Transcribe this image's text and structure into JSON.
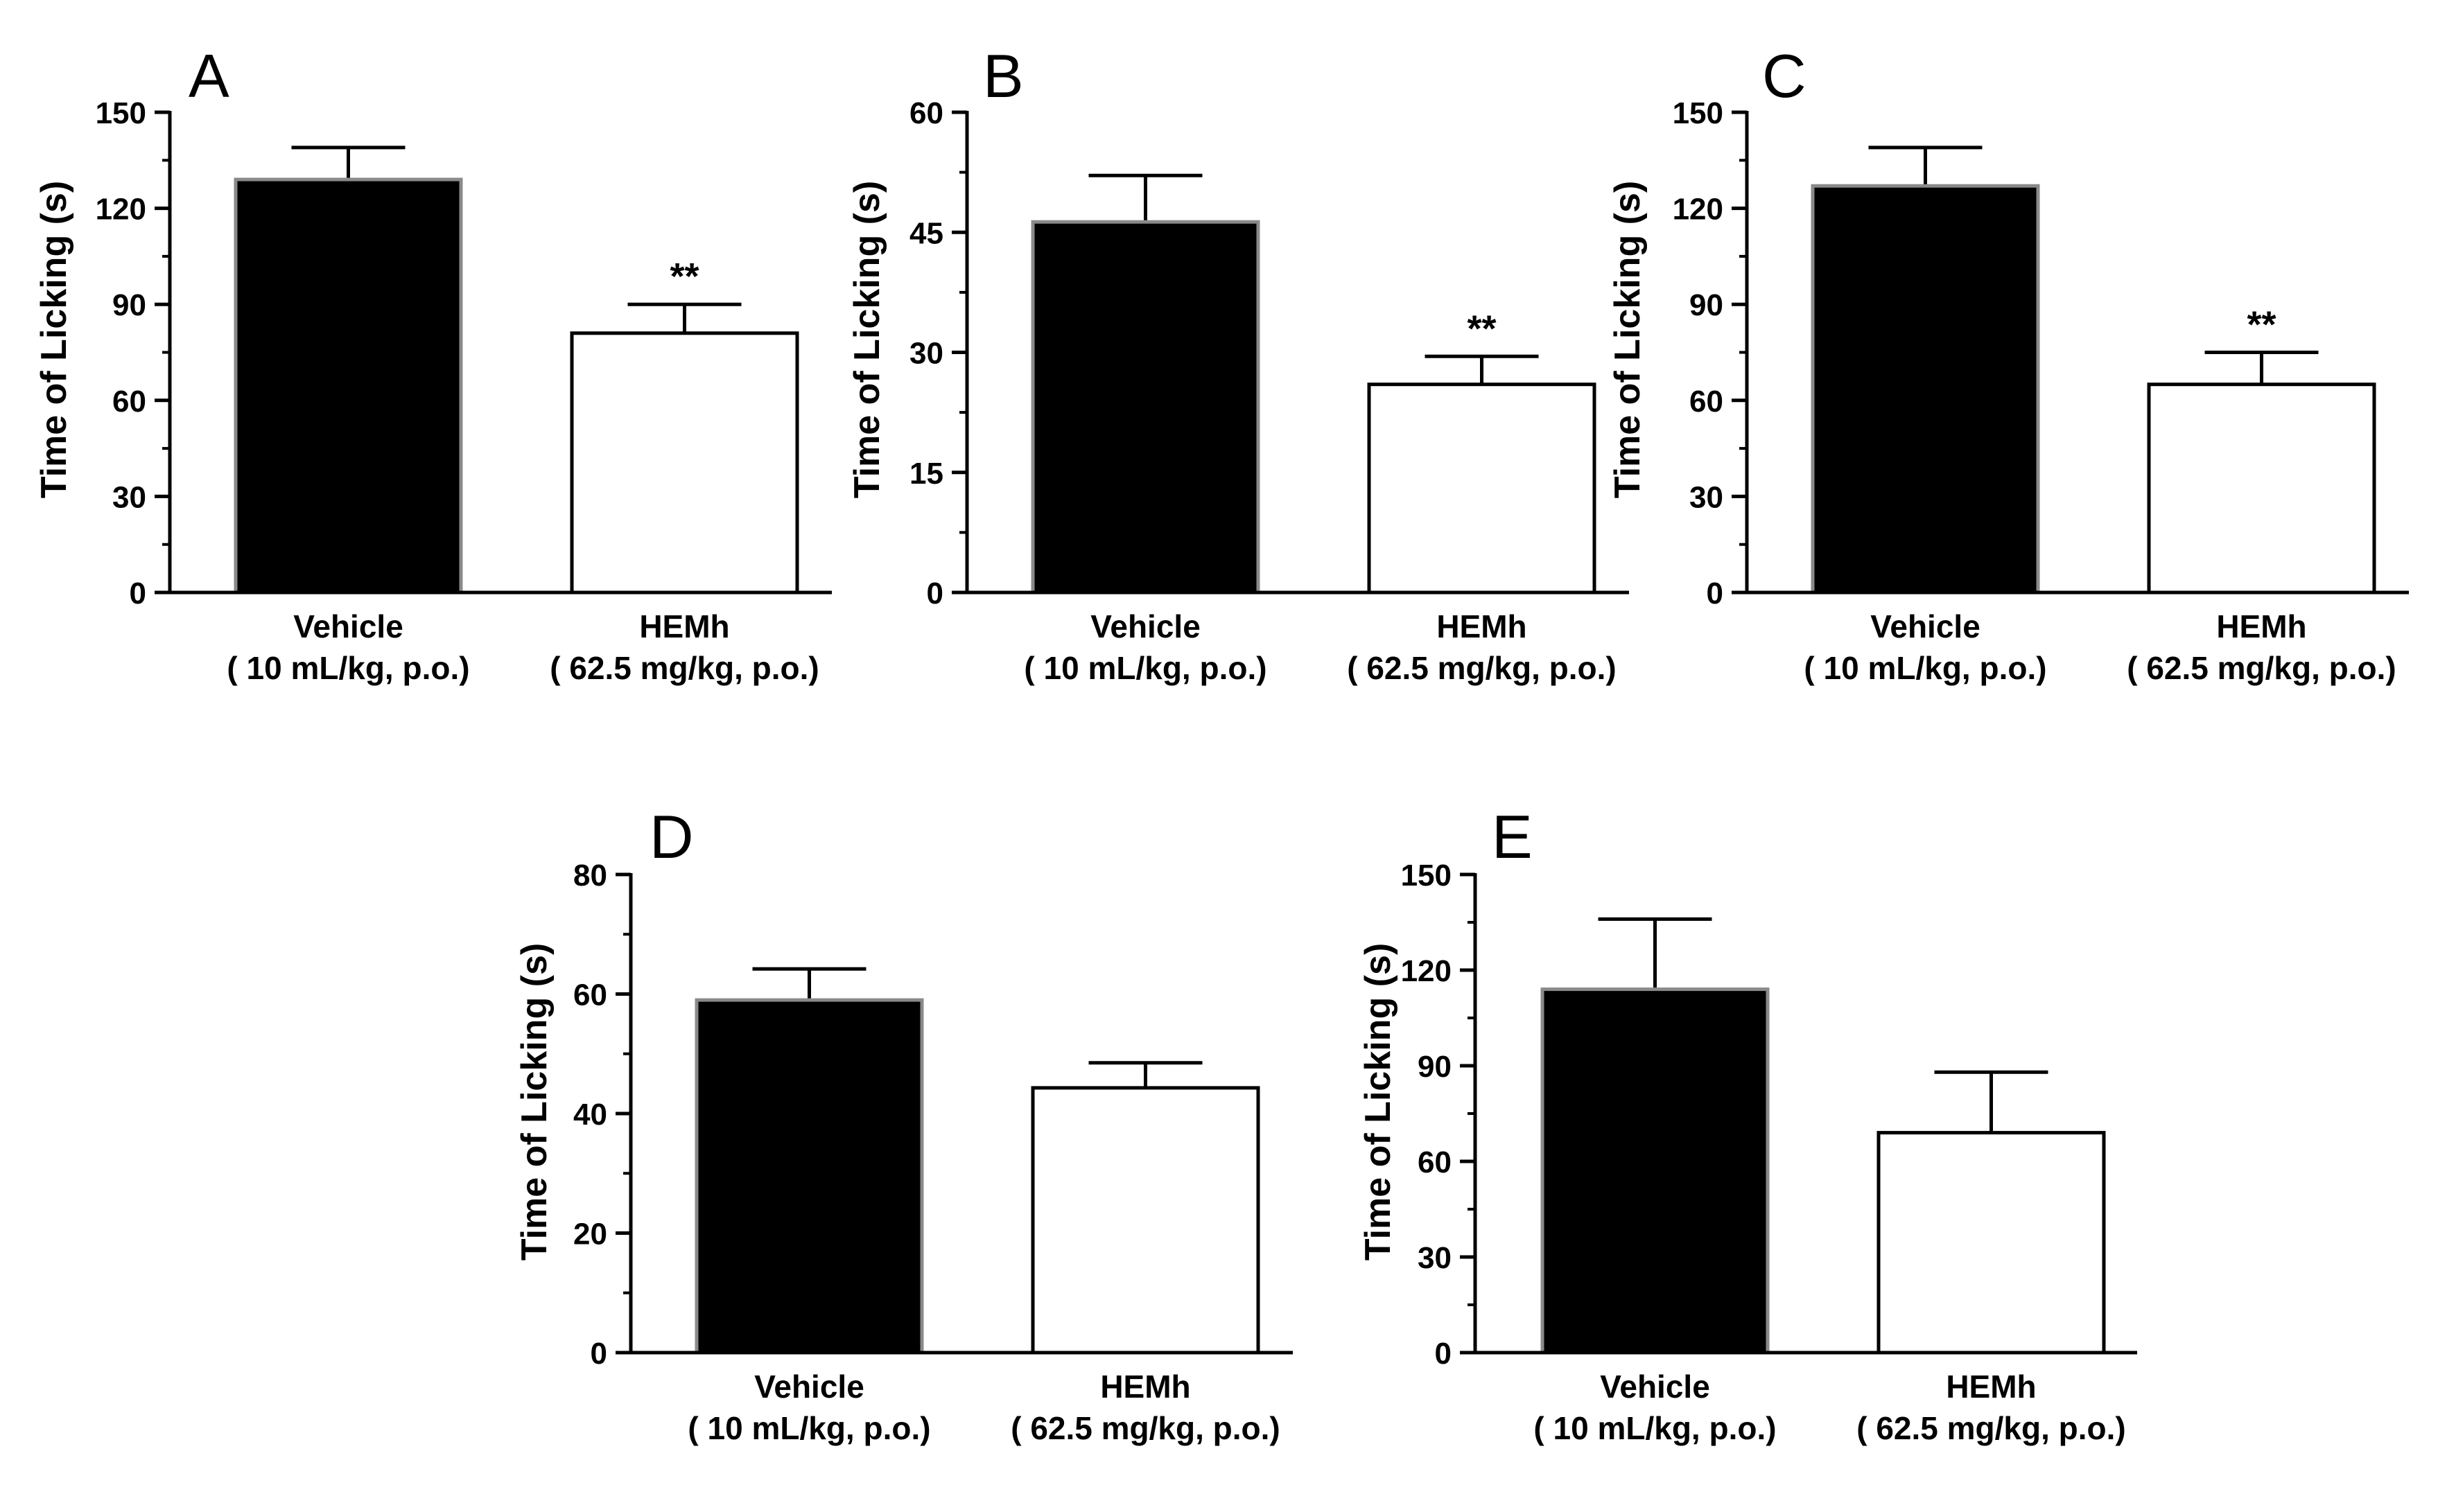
{
  "chart_data": [
    {
      "panel": "A",
      "type": "bar",
      "ylabel": "Time of Licking (s)",
      "ylim": [
        0,
        150
      ],
      "yticks": [
        "0",
        "30",
        "60",
        "90",
        "120",
        "150"
      ],
      "categories": [
        {
          "name": "Vehicle",
          "dose": "( 10 mL/kg, p.o.)",
          "value": 129,
          "error": 10,
          "fill": "#000000",
          "sig": ""
        },
        {
          "name": "HEMh",
          "dose": "( 62.5 mg/kg, p.o.)",
          "value": 81,
          "error": 9,
          "fill": "#ffffff",
          "sig": "**"
        }
      ]
    },
    {
      "panel": "B",
      "type": "bar",
      "ylabel": "Time of Licking (s)",
      "ylim": [
        0,
        60
      ],
      "yticks": [
        "0",
        "15",
        "30",
        "45",
        "60"
      ],
      "categories": [
        {
          "name": "Vehicle",
          "dose": "( 10 mL/kg, p.o.)",
          "value": 46.3,
          "error": 5.8,
          "fill": "#000000",
          "sig": ""
        },
        {
          "name": "HEMh",
          "dose": "( 62.5 mg/kg, p.o.)",
          "value": 26,
          "error": 3.5,
          "fill": "#ffffff",
          "sig": "**"
        }
      ]
    },
    {
      "panel": "C",
      "type": "bar",
      "ylabel": "Time of Licking (s)",
      "ylim": [
        0,
        150
      ],
      "yticks": [
        "0",
        "30",
        "60",
        "90",
        "120",
        "150"
      ],
      "categories": [
        {
          "name": "Vehicle",
          "dose": "( 10 mL/kg, p.o.)",
          "value": 127,
          "error": 12,
          "fill": "#000000",
          "sig": ""
        },
        {
          "name": "HEMh",
          "dose": "( 62.5 mg/kg, p.o.)",
          "value": 65,
          "error": 10,
          "fill": "#ffffff",
          "sig": "**"
        }
      ]
    },
    {
      "panel": "D",
      "type": "bar",
      "ylabel": "Time of Licking (s)",
      "ylim": [
        0,
        80
      ],
      "yticks": [
        "0",
        "20",
        "40",
        "60",
        "80"
      ],
      "categories": [
        {
          "name": "Vehicle",
          "dose": "( 10 mL/kg, p.o.)",
          "value": 59,
          "error": 5.2,
          "fill": "#000000",
          "sig": ""
        },
        {
          "name": "HEMh",
          "dose": "( 62.5 mg/kg, p.o.)",
          "value": 44.3,
          "error": 4.2,
          "fill": "#ffffff",
          "sig": ""
        }
      ]
    },
    {
      "panel": "E",
      "type": "bar",
      "ylabel": "Time of Licking (s)",
      "ylim": [
        0,
        150
      ],
      "yticks": [
        "0",
        "30",
        "60",
        "90",
        "120",
        "150"
      ],
      "categories": [
        {
          "name": "Vehicle",
          "dose": "( 10 mL/kg, p.o.)",
          "value": 114,
          "error": 22,
          "fill": "#000000",
          "sig": ""
        },
        {
          "name": "HEMh",
          "dose": "( 62.5 mg/kg, p.o.)",
          "value": 69,
          "error": 19,
          "fill": "#ffffff",
          "sig": ""
        }
      ]
    }
  ]
}
